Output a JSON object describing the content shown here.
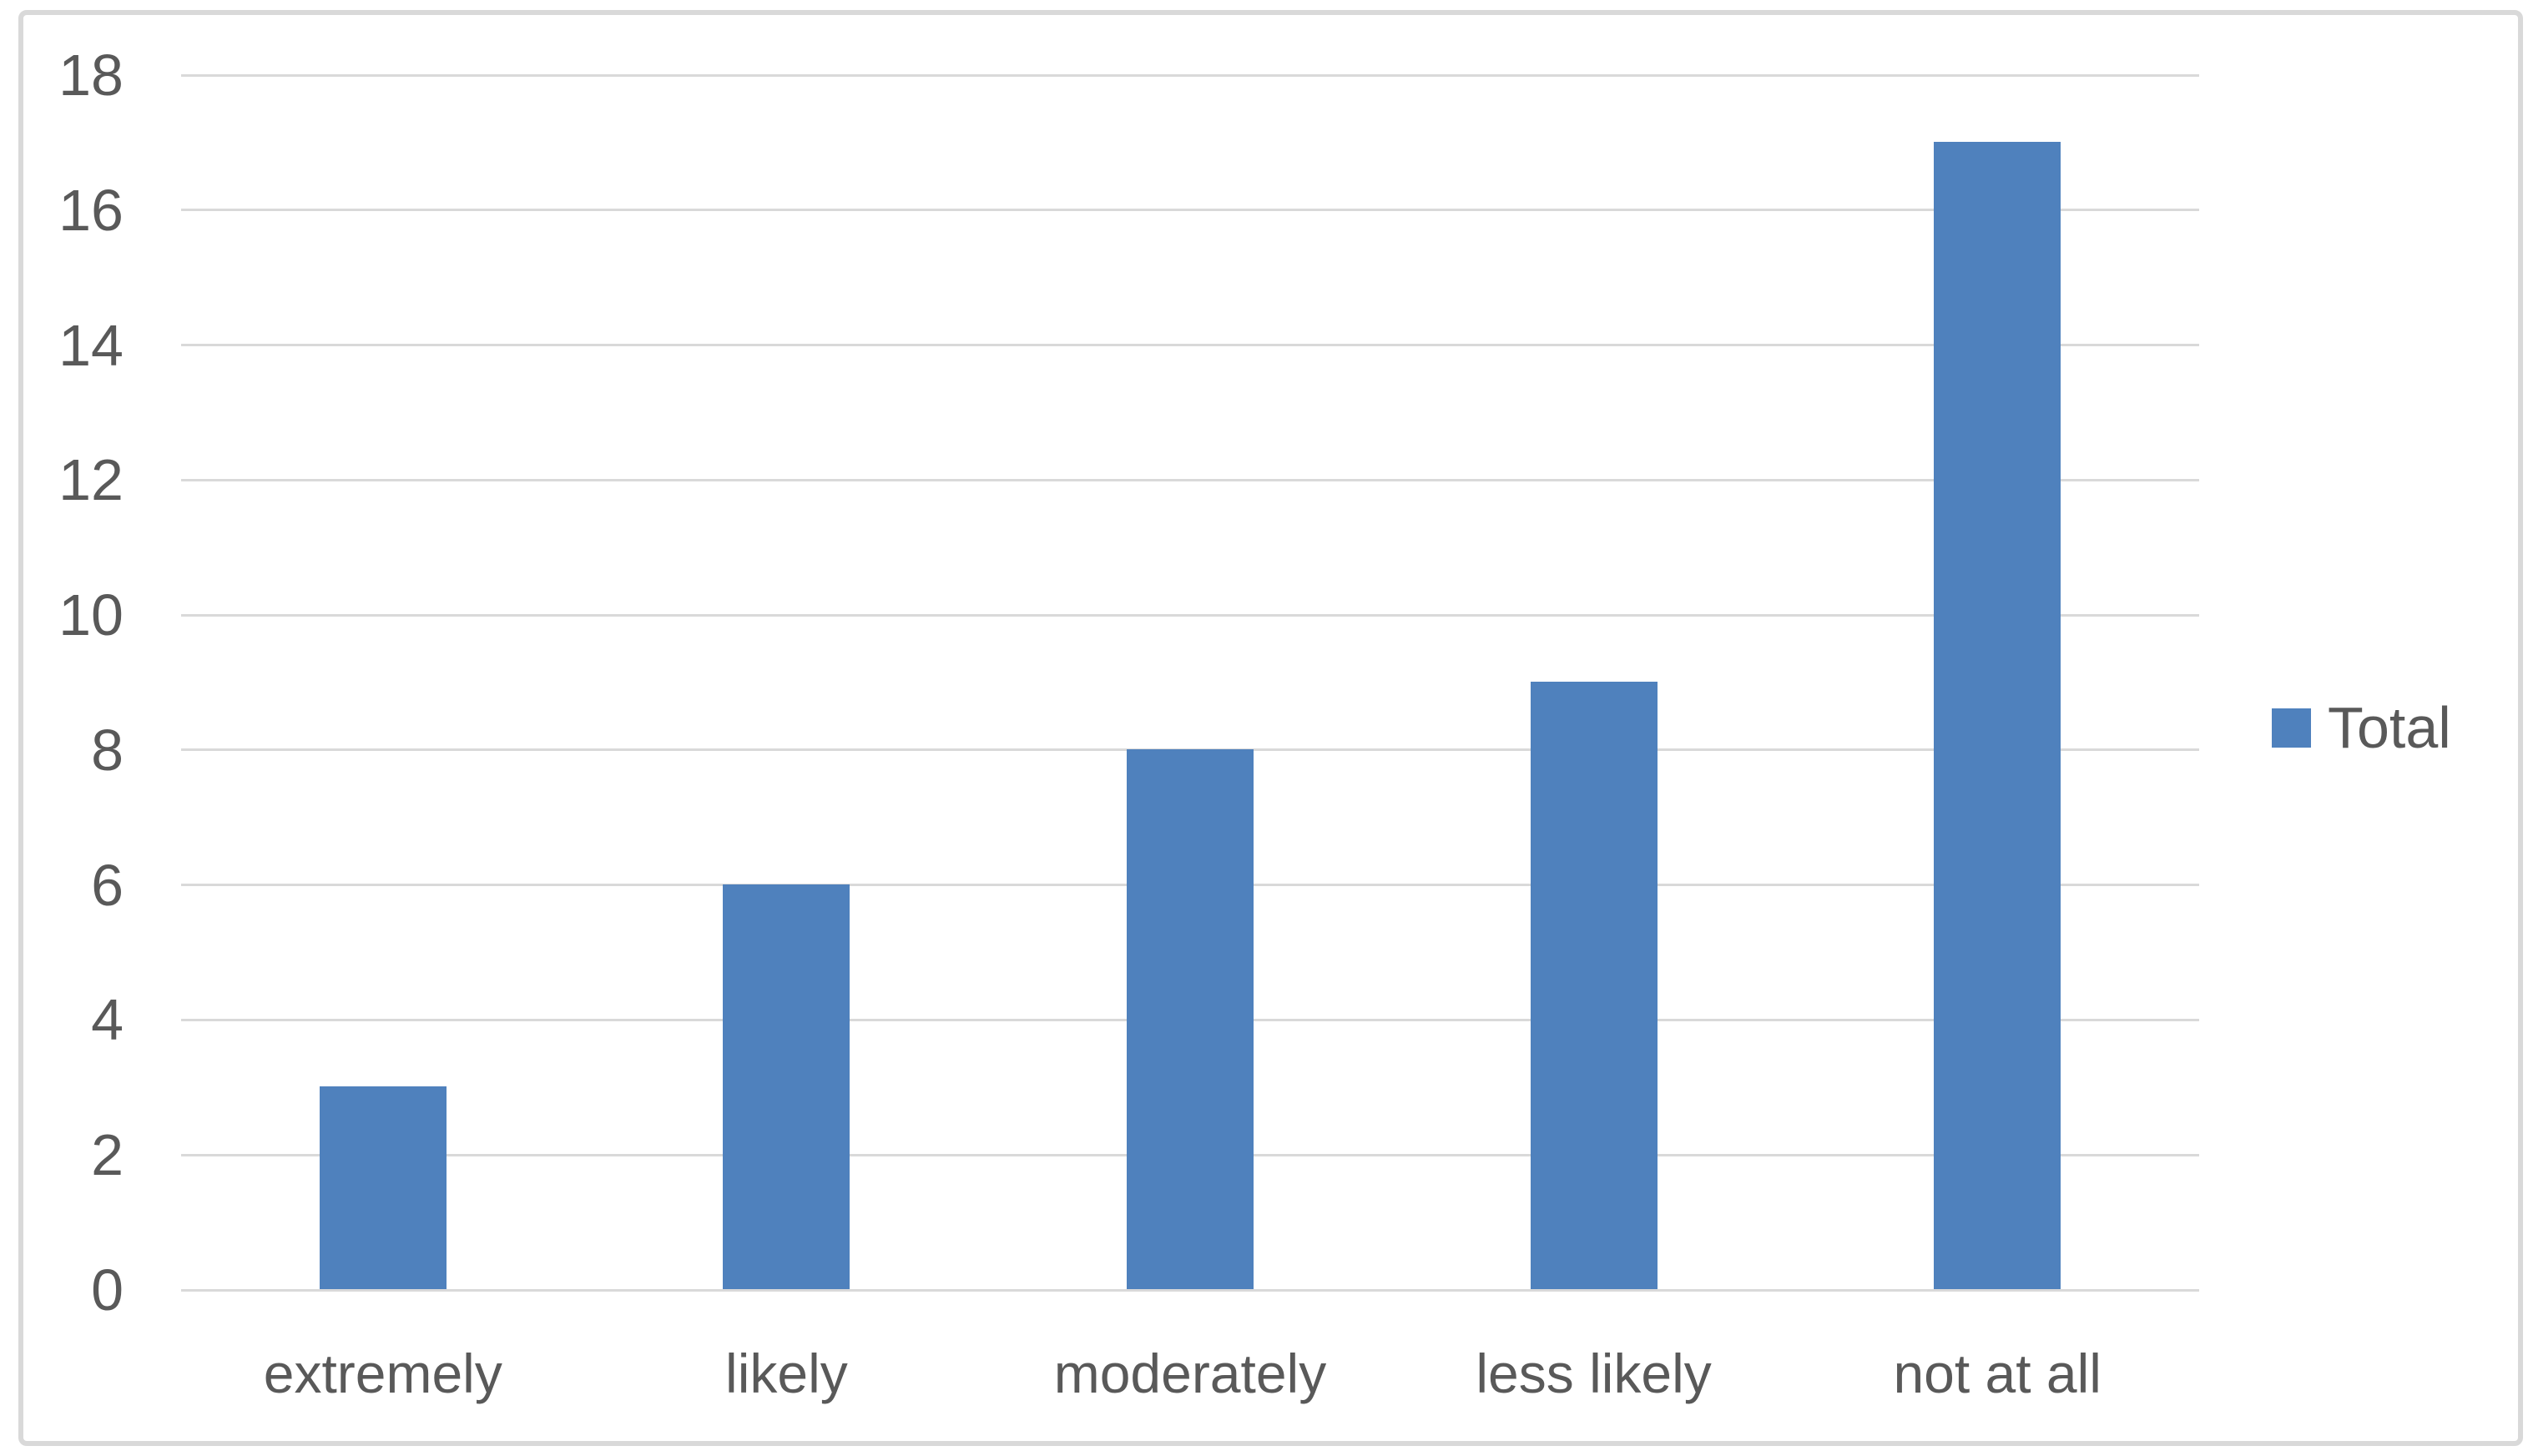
{
  "chart_data": {
    "type": "bar",
    "title": "",
    "xlabel": "",
    "ylabel": "",
    "categories": [
      "extremely",
      "likely",
      "moderately",
      "less likely",
      "not at all"
    ],
    "series": [
      {
        "name": "Total",
        "values": [
          3,
          6,
          8,
          9,
          17
        ]
      }
    ],
    "ylim": [
      0,
      18
    ],
    "yticks": [
      0,
      2,
      4,
      6,
      8,
      10,
      12,
      14,
      16,
      18
    ],
    "grid": "horizontal",
    "legend": {
      "label": "Total",
      "position": "right"
    },
    "colors": {
      "bar": "#4f81bd",
      "gridline": "#d9d9d9",
      "border": "#d9d9d9",
      "axis_text": "#595959",
      "background": "#ffffff"
    }
  }
}
